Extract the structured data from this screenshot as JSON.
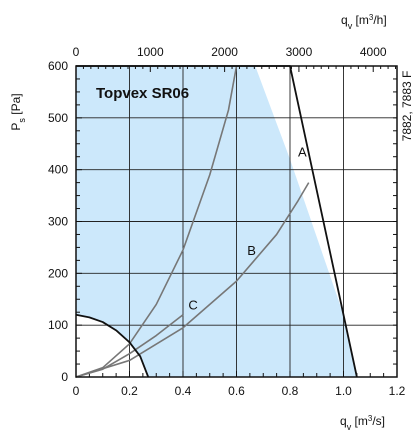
{
  "chart_data": {
    "type": "line",
    "title": "Topvex SR06",
    "side_code": "7882, 7883 F",
    "xlabel": "q",
    "xlabel_sub": "v",
    "xlabel_unit": " [m³/s]",
    "ylabel": "P",
    "ylabel_sub": "s",
    "ylabel_unit": " [Pa]",
    "top_xlabel": "q",
    "top_xlabel_sub": "v",
    "top_xlabel_unit": " [m³/h]",
    "xlim": [
      0,
      1.2
    ],
    "ylim": [
      0,
      600
    ],
    "top_xlim": [
      0,
      4320
    ],
    "x_ticks": [
      "0",
      "0.2",
      "0.4",
      "0.6",
      "0.8",
      "1.0",
      "1.2"
    ],
    "y_ticks": [
      "0",
      "100",
      "200",
      "300",
      "400",
      "500",
      "600"
    ],
    "top_ticks": [
      "0",
      "1000",
      "2000",
      "3000",
      "4000"
    ],
    "grid": true,
    "colors": {
      "fill": "#cce8fb",
      "grid": "#222222",
      "border": "#111111",
      "system_curve": "#777777",
      "fan_curve": "#111111"
    },
    "operating_area": {
      "x": [
        0,
        0.67,
        0.8,
        1.0,
        1.05,
        0.27,
        0.24,
        0.2,
        0.15,
        0.1,
        0.05,
        0
      ],
      "y": [
        600,
        600,
        420,
        120,
        0,
        0,
        40,
        67,
        90,
        106,
        115,
        120
      ]
    },
    "series": [
      {
        "name": "A",
        "label_at": [
          0.83,
          425
        ],
        "x": [
          0,
          0.1,
          0.2,
          0.3,
          0.4,
          0.5,
          0.57,
          0.6
        ],
        "y": [
          0,
          18,
          64,
          140,
          245,
          390,
          515,
          600
        ]
      },
      {
        "name": "B",
        "label_at": [
          0.64,
          235
        ],
        "x": [
          0,
          0.2,
          0.4,
          0.6,
          0.75,
          0.83,
          0.87
        ],
        "y": [
          0,
          32,
          95,
          185,
          275,
          340,
          375
        ]
      },
      {
        "name": "C",
        "label_at": [
          0.42,
          130
        ],
        "x": [
          0,
          0.1,
          0.2,
          0.3,
          0.4
        ],
        "y": [
          0,
          15,
          45,
          80,
          120
        ]
      },
      {
        "name": "",
        "x": [
          0,
          0.8,
          1.05
        ],
        "y": [
          600,
          600,
          0
        ]
      },
      {
        "name": "",
        "x": [
          0,
          0.05,
          0.1,
          0.15,
          0.2,
          0.24,
          0.27
        ],
        "y": [
          120,
          115,
          106,
          90,
          67,
          40,
          0
        ]
      }
    ]
  }
}
